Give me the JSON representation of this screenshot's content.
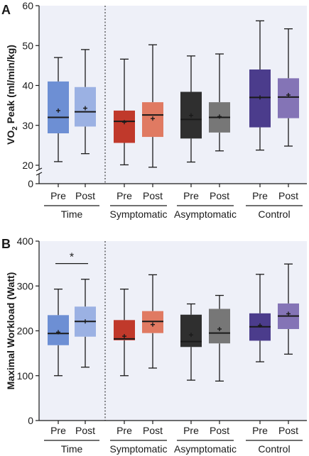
{
  "chart_data": [
    {
      "type": "box",
      "panel_letter": "A",
      "ylabel_parts": [
        "VO",
        "2",
        " Peak (ml/min/kg)"
      ],
      "ylim": [
        0,
        60
      ],
      "yticks": [
        0,
        20,
        30,
        40,
        50,
        60
      ],
      "axis_break": [
        0,
        20
      ],
      "background": "#eef0f8",
      "categories": [
        "Pre",
        "Post",
        "Pre",
        "Post",
        "Pre",
        "Post",
        "Pre",
        "Post"
      ],
      "groups": [
        {
          "label": "Time",
          "members": [
            0,
            1
          ]
        },
        {
          "label": "Symptomatic",
          "members": [
            2,
            3
          ]
        },
        {
          "label": "Asymptomatic",
          "members": [
            4,
            5
          ]
        },
        {
          "label": "Control",
          "members": [
            6,
            7
          ]
        }
      ],
      "divider_after_group": 0,
      "boxes": [
        {
          "min": 20.9,
          "q1": 28.0,
          "median": 32.0,
          "q3": 41.0,
          "max": 47.0,
          "mean": 33.7,
          "color": "#6d8fd4"
        },
        {
          "min": 22.9,
          "q1": 29.7,
          "median": 33.4,
          "q3": 39.6,
          "max": 49.0,
          "mean": 34.3,
          "color": "#9bb1e3"
        },
        {
          "min": 20.1,
          "q1": 25.6,
          "median": 31.0,
          "q3": 33.7,
          "max": 46.6,
          "mean": 30.8,
          "color": "#c0392b"
        },
        {
          "min": 19.5,
          "q1": 27.1,
          "median": 32.6,
          "q3": 35.8,
          "max": 50.2,
          "mean": 31.7,
          "color": "#e07a62"
        },
        {
          "min": 20.8,
          "q1": 26.7,
          "median": 31.5,
          "q3": 38.4,
          "max": 47.4,
          "mean": 32.5,
          "color": "#2f2f2f"
        },
        {
          "min": 23.6,
          "q1": 28.2,
          "median": 32.0,
          "q3": 35.8,
          "max": 47.9,
          "mean": 32.2,
          "color": "#777777"
        },
        {
          "min": 23.8,
          "q1": 29.5,
          "median": 37.0,
          "q3": 44.0,
          "max": 56.2,
          "mean": 37.0,
          "color": "#4b3c8c"
        },
        {
          "min": 24.8,
          "q1": 31.8,
          "median": 37.1,
          "q3": 41.8,
          "max": 54.2,
          "mean": 37.6,
          "color": "#8474b6"
        }
      ],
      "significance": []
    },
    {
      "type": "box",
      "panel_letter": "B",
      "ylabel_parts": [
        "Maximal Workload (Watt)"
      ],
      "ylim": [
        0,
        400
      ],
      "yticks": [
        0,
        100,
        200,
        300,
        400
      ],
      "axis_break": null,
      "background": "#eef0f8",
      "categories": [
        "Pre",
        "Post",
        "Pre",
        "Post",
        "Pre",
        "Post",
        "Pre",
        "Post"
      ],
      "groups": [
        {
          "label": "Time",
          "members": [
            0,
            1
          ]
        },
        {
          "label": "Symptomatic",
          "members": [
            2,
            3
          ]
        },
        {
          "label": "Asymptomatic",
          "members": [
            4,
            5
          ]
        },
        {
          "label": "Control",
          "members": [
            6,
            7
          ]
        }
      ],
      "divider_after_group": 0,
      "boxes": [
        {
          "min": 100,
          "q1": 168,
          "median": 194,
          "q3": 235,
          "max": 293,
          "mean": 197,
          "color": "#6d8fd4"
        },
        {
          "min": 119,
          "q1": 187,
          "median": 221,
          "q3": 254,
          "max": 315,
          "mean": 221,
          "color": "#9bb1e3"
        },
        {
          "min": 100,
          "q1": 179,
          "median": 182,
          "q3": 224,
          "max": 293,
          "mean": 188,
          "color": "#c0392b"
        },
        {
          "min": 117,
          "q1": 195,
          "median": 221,
          "q3": 244,
          "max": 325,
          "mean": 214,
          "color": "#e07a62"
        },
        {
          "min": 90,
          "q1": 164,
          "median": 176,
          "q3": 236,
          "max": 260,
          "mean": 191,
          "color": "#2f2f2f"
        },
        {
          "min": 88,
          "q1": 172,
          "median": 195,
          "q3": 249,
          "max": 279,
          "mean": 204,
          "color": "#777777"
        },
        {
          "min": 131,
          "q1": 178,
          "median": 209,
          "q3": 239,
          "max": 326,
          "mean": 212,
          "color": "#4b3c8c"
        },
        {
          "min": 148,
          "q1": 204,
          "median": 233,
          "q3": 261,
          "max": 349,
          "mean": 238,
          "color": "#8474b6"
        }
      ],
      "significance": [
        {
          "from": 0,
          "to": 1,
          "y": 350,
          "label": "*"
        }
      ]
    }
  ]
}
